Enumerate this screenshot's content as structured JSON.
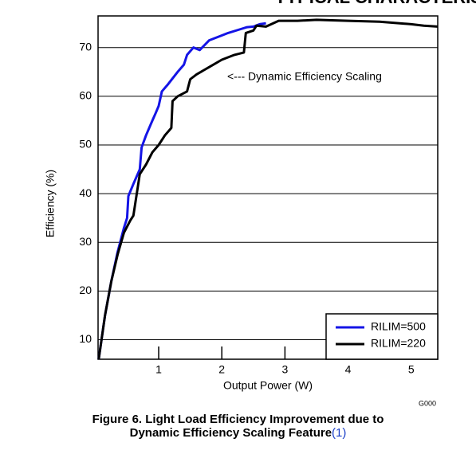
{
  "chart_data": {
    "type": "line",
    "header": "TYPICAL CHARACTERISTICS",
    "code": "G000",
    "caption": [
      "Figure 6. Light Load Efficiency Improvement due to",
      "Dynamic Efficiency Scaling Feature"
    ],
    "caption_ref": "(1)",
    "xlabel": "Output Power (W)",
    "ylabel": "Efficiency (%)",
    "annotation": "<--- Dynamic Efficiency Scaling",
    "xlim": [
      0.04,
      5.42
    ],
    "ylim": [
      6,
      76.5
    ],
    "xticks": [
      1,
      2,
      3,
      4,
      5
    ],
    "yticks": [
      10,
      20,
      30,
      40,
      50,
      60,
      70
    ],
    "grid": true,
    "legend": "lower right",
    "series": [
      {
        "name": "RILIM=500",
        "color": "#1414e6",
        "x": [
          0.05,
          0.15,
          0.25,
          0.35,
          0.45,
          0.5,
          0.52,
          0.6,
          0.7,
          0.73,
          0.8,
          0.9,
          0.95,
          1.0,
          1.05,
          1.15,
          1.3,
          1.4,
          1.45,
          1.55,
          1.65,
          1.8,
          2.0,
          2.1,
          2.3,
          2.4,
          2.5,
          2.6,
          2.7
        ],
        "values": [
          6,
          15,
          22,
          28,
          33,
          35,
          39.5,
          42,
          45,
          49.5,
          52,
          55,
          56.5,
          58,
          61,
          62.5,
          65,
          66.5,
          68.5,
          70,
          69.5,
          71.5,
          72.5,
          73,
          73.8,
          74.2,
          74.3,
          74.8,
          75
        ]
      },
      {
        "name": "RILIM=220",
        "color": "#000000",
        "x": [
          0.05,
          0.15,
          0.25,
          0.35,
          0.45,
          0.55,
          0.6,
          0.7,
          0.8,
          0.9,
          1.0,
          1.1,
          1.2,
          1.22,
          1.3,
          1.45,
          1.5,
          1.6,
          1.8,
          2.0,
          2.2,
          2.35,
          2.38,
          2.5,
          2.55,
          2.7,
          2.9,
          3.2,
          3.5,
          4.0,
          4.5,
          5.0,
          5.2,
          5.42
        ],
        "values": [
          6,
          15,
          22,
          27.5,
          32,
          34.5,
          35.5,
          44,
          46,
          48.5,
          50,
          52,
          53.5,
          59,
          60,
          61,
          63.5,
          64.5,
          66,
          67.5,
          68.5,
          69,
          73,
          73.5,
          74.5,
          74.3,
          75.5,
          75.5,
          75.7,
          75.5,
          75.3,
          74.8,
          74.5,
          74.3
        ]
      }
    ]
  }
}
